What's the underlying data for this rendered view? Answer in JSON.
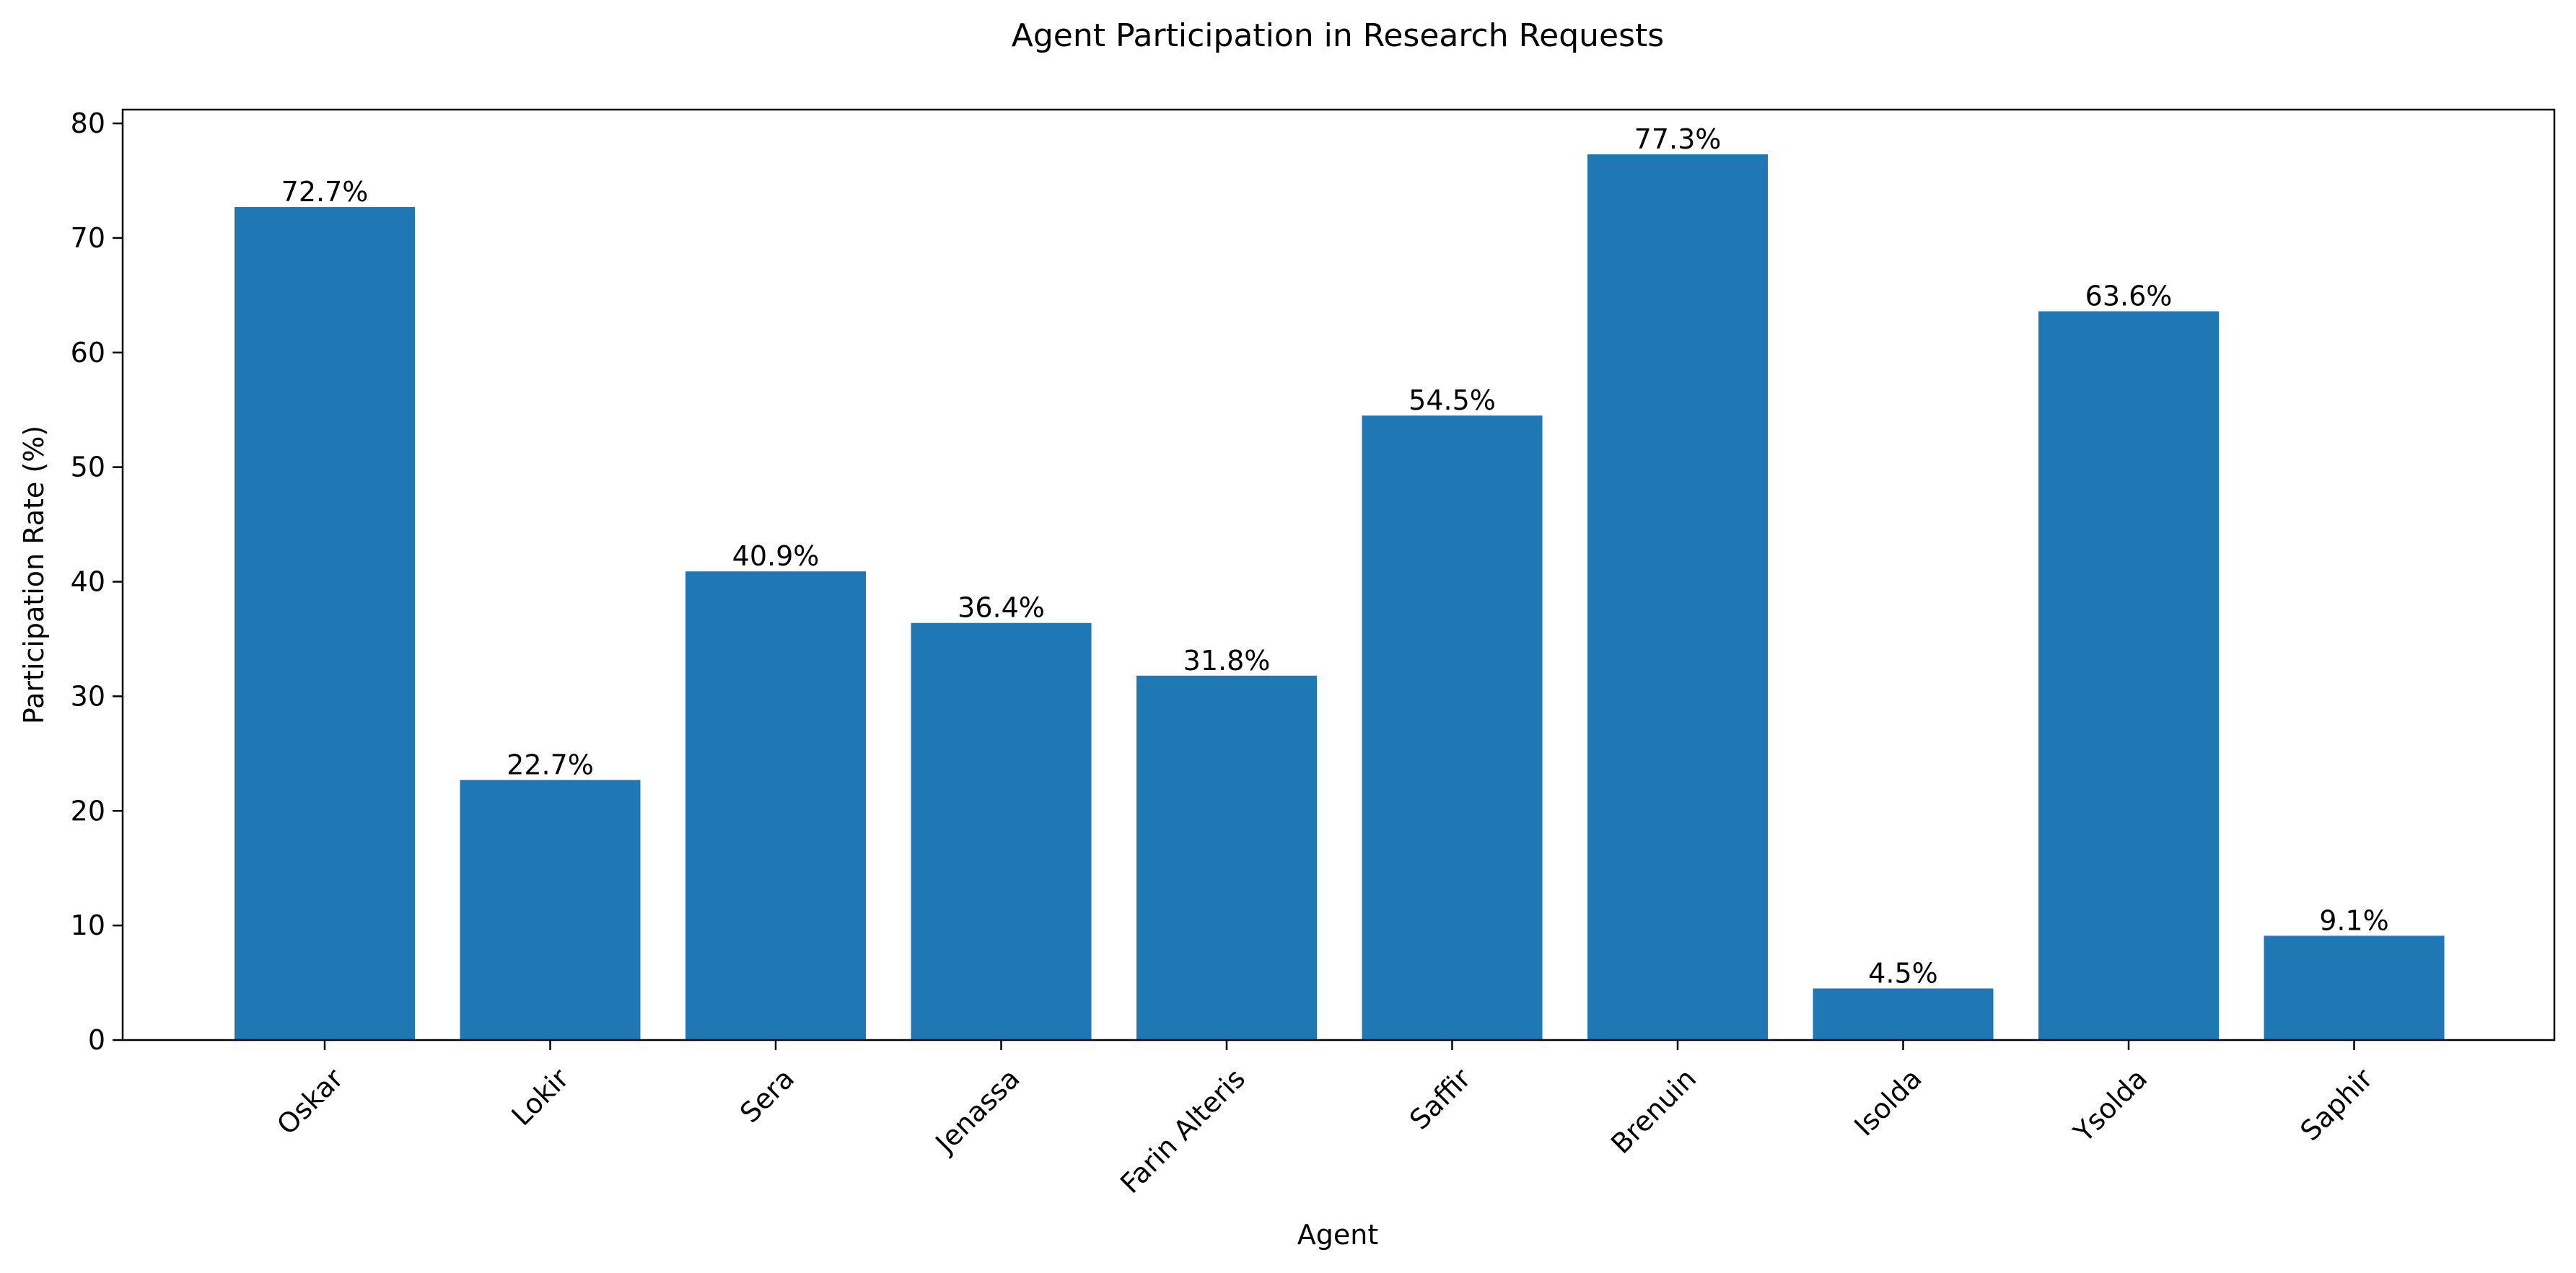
{
  "chart_data": {
    "type": "bar",
    "title": "Agent Participation in Research Requests",
    "xlabel": "Agent",
    "ylabel": "Participation Rate (%)",
    "categories": [
      "Oskar",
      "Lokir",
      "Sera",
      "Jenassa",
      "Farin Alteris",
      "Saffir",
      "Brenuin",
      "Isolda",
      "Ysolda",
      "Saphir"
    ],
    "values": [
      72.7,
      22.7,
      40.9,
      36.4,
      31.8,
      54.5,
      77.3,
      4.5,
      63.6,
      9.1
    ],
    "data_labels": [
      "72.7%",
      "22.7%",
      "40.9%",
      "36.4%",
      "31.8%",
      "54.5%",
      "77.3%",
      "4.5%",
      "63.6%",
      "9.1%"
    ],
    "ylim": [
      0,
      81.2
    ],
    "yticks": [
      0,
      10,
      20,
      30,
      40,
      50,
      60,
      70,
      80
    ],
    "grid": false,
    "legend": "none",
    "bar_color": "#1f77b4"
  }
}
